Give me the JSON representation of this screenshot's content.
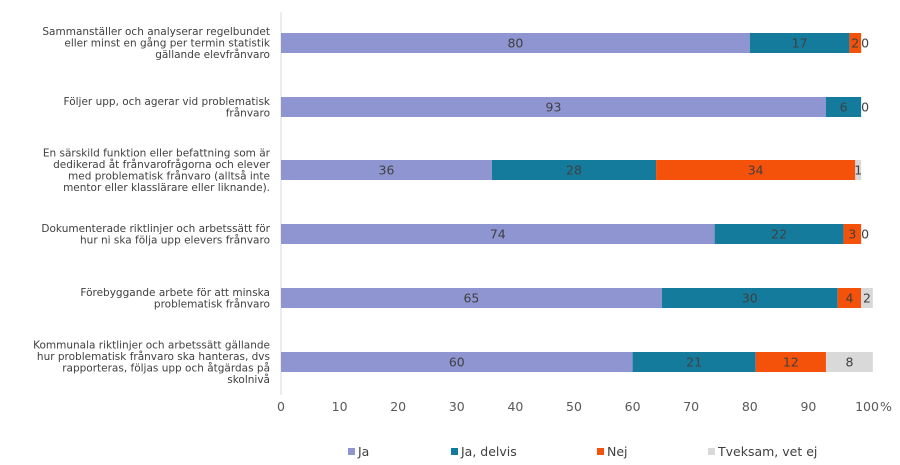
{
  "chart_data": {
    "type": "bar",
    "orientation": "horizontal",
    "stacked": true,
    "categories": [
      [
        "Sammanställer och analyserar regelbundet",
        "eller minst en gång per termin statistik",
        "gällande elevfrånvaro"
      ],
      [
        "Följer upp, och agerar vid problematisk",
        "frånvaro"
      ],
      [
        "En särskild funktion eller befattning som är",
        "dedikerad åt frånvarofrågorna och elever",
        "med problematisk frånvaro (alltså inte",
        "mentor eller klasslärare eller liknande)."
      ],
      [
        "Dokumenterade riktlinjer och arbetssätt för",
        "hur ni ska följa upp elevers frånvaro"
      ],
      [
        "Förebyggande arbete för att minska",
        "problematisk frånvaro"
      ],
      [
        "Kommunala riktlinjer och arbetssätt gällande",
        "hur problematisk frånvaro ska hanteras, dvs",
        "rapporteras, följas upp och åtgärdas på",
        "skolnivå"
      ]
    ],
    "series": [
      {
        "name": "Ja",
        "color": "#8e95d1",
        "values": [
          80,
          93,
          36,
          74,
          65,
          60
        ]
      },
      {
        "name": "Ja, delvis",
        "color": "#157b9c",
        "values": [
          17,
          6,
          28,
          22,
          30,
          21
        ]
      },
      {
        "name": "Nej",
        "color": "#f4520b",
        "values": [
          2,
          0,
          34,
          3,
          4,
          12
        ]
      },
      {
        "name": "Tveksam, vet ej",
        "color": "#d9d9d9",
        "values": [
          0,
          0,
          1,
          0,
          2,
          8
        ]
      }
    ],
    "data_labels": [
      [
        "80",
        "17",
        "2",
        "0"
      ],
      [
        "93",
        "6",
        "0",
        ""
      ],
      [
        "36",
        "28",
        "34",
        "1"
      ],
      [
        "74",
        "22",
        "3",
        "0"
      ],
      [
        "65",
        "30",
        "4",
        "2"
      ],
      [
        "60",
        "21",
        "12",
        "8"
      ]
    ],
    "xlim": [
      0,
      100
    ],
    "xticks": [
      0,
      10,
      20,
      30,
      40,
      50,
      60,
      70,
      80,
      90,
      100
    ],
    "x_unit": "%",
    "grid": false,
    "legend_position": "bottom"
  }
}
